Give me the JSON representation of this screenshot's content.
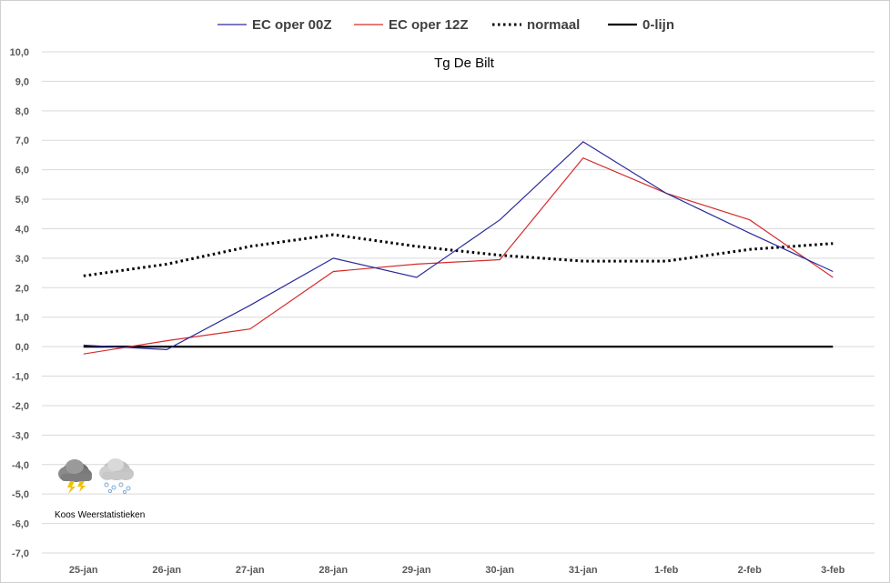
{
  "chart_data": {
    "type": "line",
    "title": "Tg De Bilt",
    "xlabel": "",
    "ylabel": "",
    "categories": [
      "25-jan",
      "26-jan",
      "27-jan",
      "28-jan",
      "29-jan",
      "30-jan",
      "31-jan",
      "1-feb",
      "2-feb",
      "3-feb"
    ],
    "ylim": [
      -7.0,
      10.0
    ],
    "ytick_step": 1.0,
    "ytick_labels": [
      "-7,0",
      "-6,0",
      "-5,0",
      "-4,0",
      "-3,0",
      "-2,0",
      "-1,0",
      "0,0",
      "1,0",
      "2,0",
      "3,0",
      "4,0",
      "5,0",
      "6,0",
      "7,0",
      "8,0",
      "9,0",
      "10,0"
    ],
    "grid": "horizontal",
    "legend_position": "top",
    "series": [
      {
        "name": "EC oper 00Z",
        "color": "#2a2a9a",
        "style": "solid",
        "values": [
          0.05,
          -0.1,
          1.4,
          3.0,
          2.35,
          4.3,
          6.95,
          5.2,
          3.85,
          2.55
        ]
      },
      {
        "name": "EC oper 12Z",
        "color": "#d62b2b",
        "style": "solid",
        "values": [
          -0.25,
          0.2,
          0.6,
          2.55,
          2.8,
          2.95,
          6.4,
          5.2,
          4.3,
          2.35
        ]
      },
      {
        "name": "normaal",
        "color": "#000000",
        "style": "dotted",
        "values": [
          2.4,
          2.8,
          3.4,
          3.8,
          3.4,
          3.1,
          2.9,
          2.9,
          3.3,
          3.5
        ]
      },
      {
        "name": "0-lijn",
        "color": "#000000",
        "style": "solid-thick",
        "values": [
          0,
          0,
          0,
          0,
          0,
          0,
          0,
          0,
          0,
          0
        ]
      }
    ]
  },
  "watermark": {
    "text": "Koos Weerstatistieken",
    "icons": [
      "thunderstorm-cloud-icon",
      "snow-cloud-icon"
    ]
  }
}
